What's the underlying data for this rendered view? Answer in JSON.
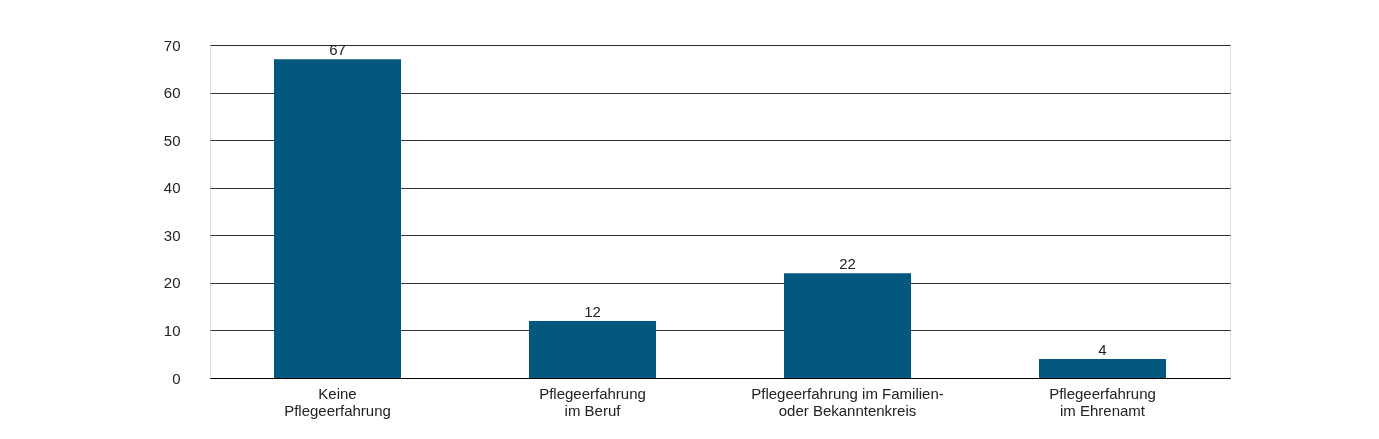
{
  "chart_data": {
    "type": "bar",
    "categories": [
      "Keine\nPflegeerfahrung",
      "Pflegeerfahrung\nim Beruf",
      "Pflegeerfahrung im Familien-\noder Bekanntenkreis",
      "Pflegeerfahrung\nim Ehrenamt"
    ],
    "values": [
      67,
      12,
      22,
      4
    ],
    "color": "#02587f",
    "ylim": [
      0,
      70
    ],
    "yticks": [
      0,
      10,
      20,
      30,
      40,
      50,
      60,
      70
    ],
    "grid": "y",
    "data_labels": true
  }
}
